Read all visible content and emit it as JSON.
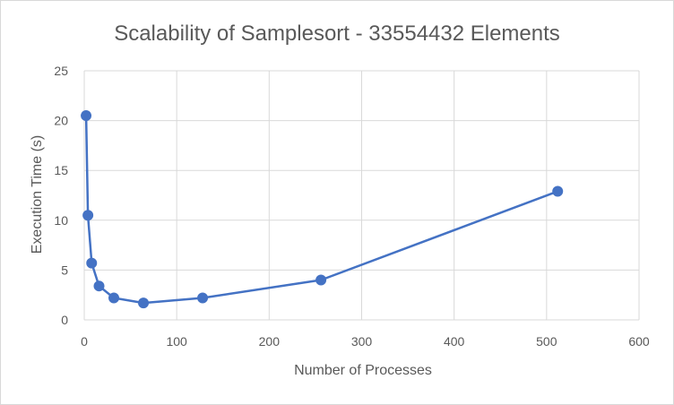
{
  "chart_data": {
    "type": "scatter",
    "title": "Scalability of Samplesort  - 33554432 Elements",
    "xlabel": "Number of Processes",
    "ylabel": "Execution Time (s)",
    "xlim": [
      0,
      600
    ],
    "ylim": [
      0,
      25
    ],
    "xticks": [
      0,
      100,
      200,
      300,
      400,
      500,
      600
    ],
    "yticks": [
      0,
      5,
      10,
      15,
      20,
      25
    ],
    "grid": true,
    "legend": "none",
    "color": "#4472c4",
    "series": [
      {
        "x": [
          2,
          4,
          8,
          16,
          32,
          64,
          128,
          256,
          512
        ],
        "y": [
          20.5,
          10.5,
          5.7,
          3.4,
          2.2,
          1.7,
          2.2,
          4.0,
          12.9
        ]
      }
    ]
  }
}
